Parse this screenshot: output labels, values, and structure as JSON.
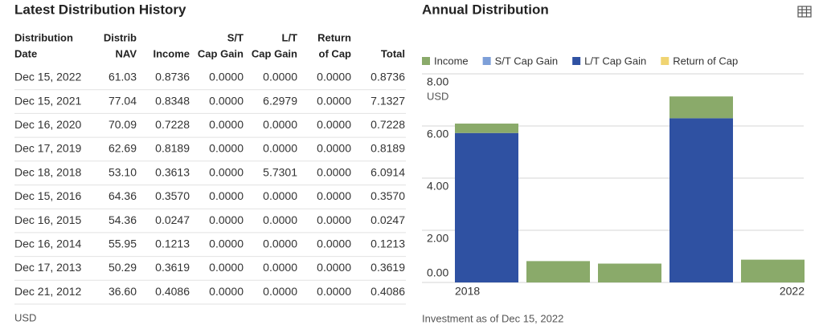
{
  "table": {
    "title": "Latest Distribution History",
    "headers": [
      [
        "Distribution",
        "Date"
      ],
      [
        "Distrib",
        "NAV"
      ],
      [
        "Income"
      ],
      [
        "S/T",
        "Cap Gain"
      ],
      [
        "L/T",
        "Cap Gain"
      ],
      [
        "Return",
        "of Cap"
      ],
      [
        "Total"
      ]
    ],
    "rows": [
      [
        "Dec 15, 2022",
        "61.03",
        "0.8736",
        "0.0000",
        "0.0000",
        "0.0000",
        "0.8736"
      ],
      [
        "Dec 15, 2021",
        "77.04",
        "0.8348",
        "0.0000",
        "6.2979",
        "0.0000",
        "7.1327"
      ],
      [
        "Dec 16, 2020",
        "70.09",
        "0.7228",
        "0.0000",
        "0.0000",
        "0.0000",
        "0.7228"
      ],
      [
        "Dec 17, 2019",
        "62.69",
        "0.8189",
        "0.0000",
        "0.0000",
        "0.0000",
        "0.8189"
      ],
      [
        "Dec 18, 2018",
        "53.10",
        "0.3613",
        "0.0000",
        "5.7301",
        "0.0000",
        "6.0914"
      ],
      [
        "Dec 15, 2016",
        "64.36",
        "0.3570",
        "0.0000",
        "0.0000",
        "0.0000",
        "0.3570"
      ],
      [
        "Dec 16, 2015",
        "54.36",
        "0.0247",
        "0.0000",
        "0.0000",
        "0.0000",
        "0.0247"
      ],
      [
        "Dec 16, 2014",
        "55.95",
        "0.1213",
        "0.0000",
        "0.0000",
        "0.0000",
        "0.1213"
      ],
      [
        "Dec 17, 2013",
        "50.29",
        "0.3619",
        "0.0000",
        "0.0000",
        "0.0000",
        "0.3619"
      ],
      [
        "Dec 21, 2012",
        "36.60",
        "0.4086",
        "0.0000",
        "0.0000",
        "0.0000",
        "0.4086"
      ]
    ],
    "footer": "USD"
  },
  "chart_data": {
    "type": "bar",
    "stacked": true,
    "title": "Annual Distribution",
    "y_unit": "USD",
    "footnote": "Investment as of Dec 15, 2022",
    "categories": [
      "2018",
      null,
      null,
      null,
      "2022"
    ],
    "series": [
      {
        "name": "Income",
        "color": "#8aaa6a",
        "values": [
          0.3613,
          0.8189,
          0.7228,
          0.8348,
          0.8736
        ]
      },
      {
        "name": "S/T Cap Gain",
        "color": "#7d9fd8",
        "values": [
          0,
          0,
          0,
          0,
          0
        ]
      },
      {
        "name": "L/T Cap Gain",
        "color": "#2f51a2",
        "values": [
          5.7301,
          0,
          0,
          6.2979,
          0
        ]
      },
      {
        "name": "Return of Cap",
        "color": "#f0d472",
        "values": [
          0,
          0,
          0,
          0,
          0
        ]
      }
    ],
    "ylim": [
      0,
      8
    ],
    "yticks": [
      {
        "value": 0,
        "label": "0.00"
      },
      {
        "value": 2,
        "label": "2.00"
      },
      {
        "value": 4,
        "label": "4.00"
      },
      {
        "value": 6,
        "label": "6.00"
      },
      {
        "value": 8,
        "label": "8.00"
      }
    ],
    "grid": true,
    "legend": "top"
  }
}
